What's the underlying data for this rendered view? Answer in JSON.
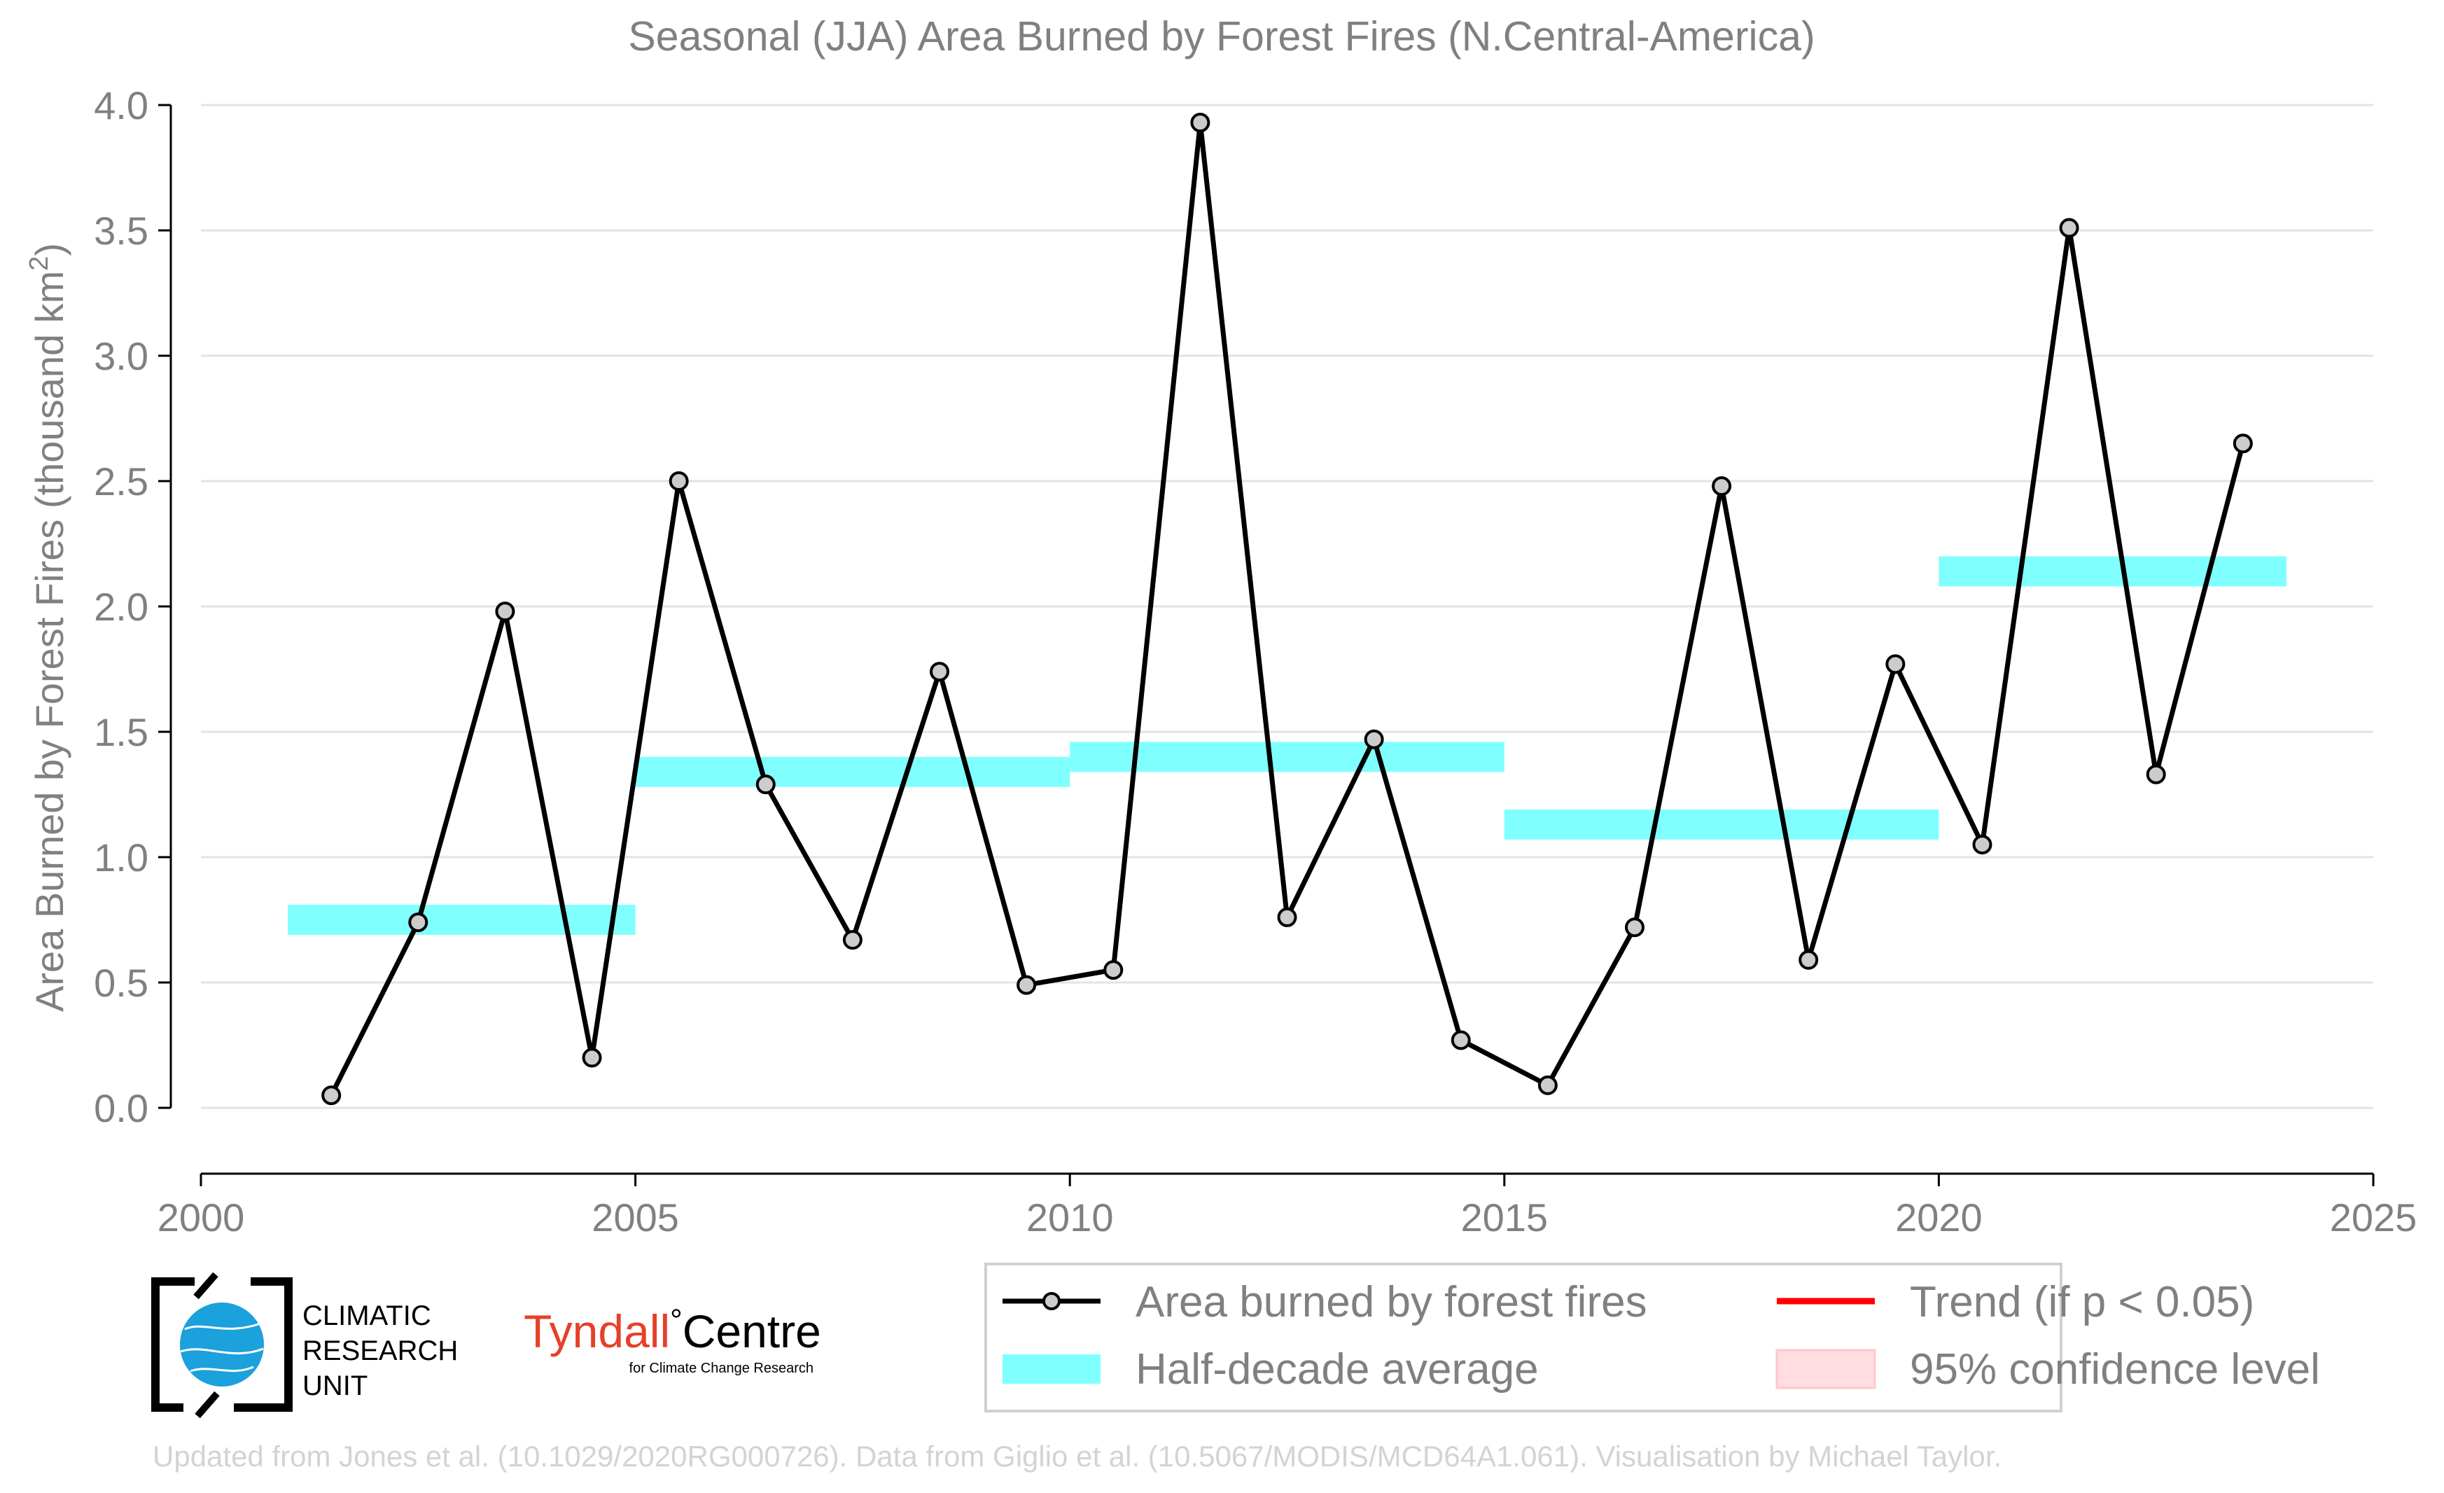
{
  "chart_data": {
    "type": "line",
    "title": "Seasonal (JJA) Area Burned by Forest Fires (N.Central-America)",
    "ylabel_prefix": "Area Burned by Forest Fires (thousand km",
    "ylabel_sup": "2",
    "ylabel_suffix": ")",
    "xlabel": "",
    "xlim": [
      2000,
      2025
    ],
    "ylim": [
      -0.25,
      4.0
    ],
    "x_ticks": [
      2000,
      2005,
      2010,
      2015,
      2020,
      2025
    ],
    "y_ticks": [
      0.0,
      0.5,
      1.0,
      1.5,
      2.0,
      2.5,
      3.0,
      3.5,
      4.0
    ],
    "grid": "horizontal",
    "series": [
      {
        "name": "Area burned by forest fires",
        "color": "#000000",
        "marker_fill": "#cccccc",
        "x": [
          2001.5,
          2002.5,
          2003.5,
          2004.5,
          2005.5,
          2006.5,
          2007.5,
          2008.5,
          2009.5,
          2010.5,
          2011.5,
          2012.5,
          2013.5,
          2014.5,
          2015.5,
          2016.5,
          2017.5,
          2018.5,
          2019.5,
          2020.5,
          2021.5,
          2022.5,
          2023.5
        ],
        "y": [
          0.05,
          0.74,
          1.98,
          0.2,
          2.5,
          1.29,
          0.67,
          1.74,
          0.49,
          0.55,
          3.93,
          0.76,
          1.47,
          0.27,
          0.09,
          0.72,
          2.48,
          0.59,
          1.77,
          1.05,
          3.51,
          1.33,
          2.65
        ]
      }
    ],
    "half_decade_average": {
      "name": "Half-decade average",
      "color": "#80ffff",
      "segments": [
        {
          "x0": 2001,
          "x1": 2005,
          "y": 0.75
        },
        {
          "x0": 2005,
          "x1": 2010,
          "y": 1.34
        },
        {
          "x0": 2010,
          "x1": 2015,
          "y": 1.4
        },
        {
          "x0": 2015,
          "x1": 2020,
          "y": 1.13
        },
        {
          "x0": 2020,
          "x1": 2024,
          "y": 2.14
        }
      ]
    },
    "legend": {
      "placement": "bottom-right",
      "entries": [
        {
          "label": "Area burned by forest fires",
          "kind": "line-marker",
          "color": "#000000"
        },
        {
          "label": "Trend (if p < 0.05)",
          "kind": "line",
          "color": "#ff0000"
        },
        {
          "label": "Half-decade average",
          "kind": "band",
          "color": "#80ffff"
        },
        {
          "label": "95% confidence level",
          "kind": "patch",
          "color": "#ffdde0"
        }
      ]
    }
  },
  "logos": {
    "cru": {
      "lines": [
        "CLIMATIC",
        "RESEARCH",
        "UNIT"
      ]
    },
    "tyndall": {
      "main": "Tyndall",
      "degree": "°",
      "centre": "Centre",
      "sub": "for Climate Change Research",
      "color": "#e5402a"
    }
  },
  "credit": "Updated from Jones et al. (10.1029/2020RG000726). Data from Giglio et al. (10.5067/MODIS/MCD64A1.061). Visualisation by Michael Taylor."
}
